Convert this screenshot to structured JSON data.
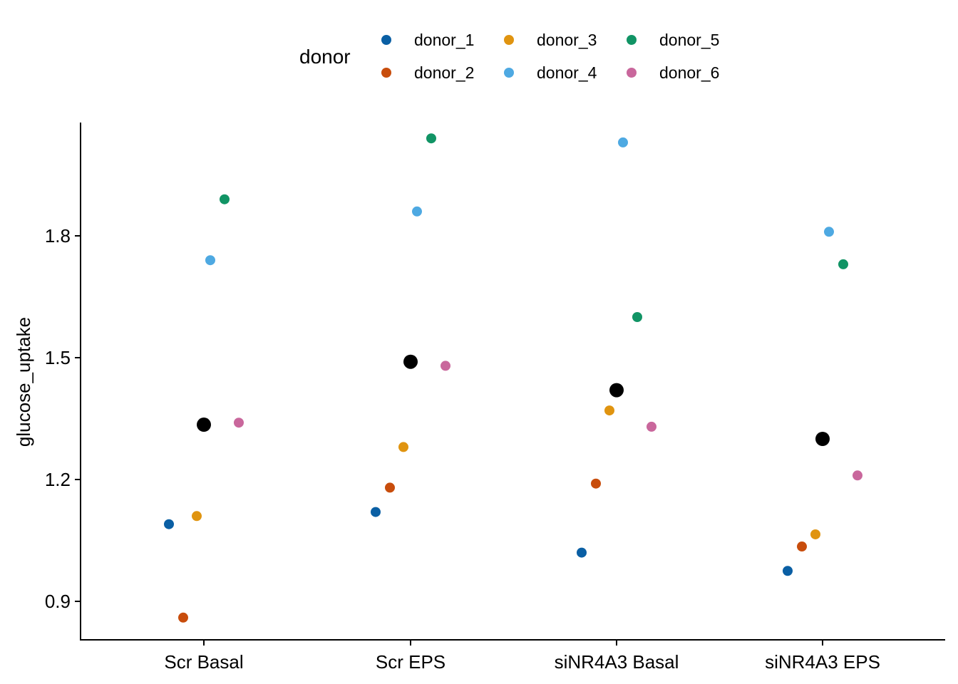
{
  "chart_data": {
    "type": "scatter",
    "xlabel": "",
    "ylabel": "glucose_uptake",
    "categories": [
      "Scr Basal",
      "Scr EPS",
      "siNR4A3 Basal",
      "siNR4A3 EPS"
    ],
    "yticks": [
      "0.9",
      "1.2",
      "1.5",
      "1.8"
    ],
    "ylim": [
      0.805,
      2.08
    ],
    "legend": {
      "title": "donor",
      "position": "top",
      "entries": [
        "donor_1",
        "donor_2",
        "donor_3",
        "donor_4",
        "donor_5",
        "donor_6"
      ]
    },
    "colors": {
      "donor_1": "#0a5fa4",
      "donor_2": "#c84d0c",
      "donor_3": "#e09410",
      "donor_4": "#4ea9e2",
      "donor_5": "#119465",
      "donor_6": "#c9679c",
      "mean": "#000000"
    },
    "series": [
      {
        "name": "donor_1",
        "values": [
          1.09,
          1.12,
          1.02,
          0.975
        ]
      },
      {
        "name": "donor_2",
        "values": [
          0.86,
          1.18,
          1.19,
          1.035
        ]
      },
      {
        "name": "donor_3",
        "values": [
          1.11,
          1.28,
          1.37,
          1.065
        ]
      },
      {
        "name": "donor_4",
        "values": [
          1.74,
          1.86,
          2.03,
          1.81
        ]
      },
      {
        "name": "donor_5",
        "values": [
          1.89,
          2.04,
          1.6,
          1.73
        ]
      },
      {
        "name": "donor_6",
        "values": [
          1.34,
          1.48,
          1.33,
          1.21
        ]
      }
    ],
    "means": [
      1.335,
      1.49,
      1.42,
      1.3
    ]
  }
}
